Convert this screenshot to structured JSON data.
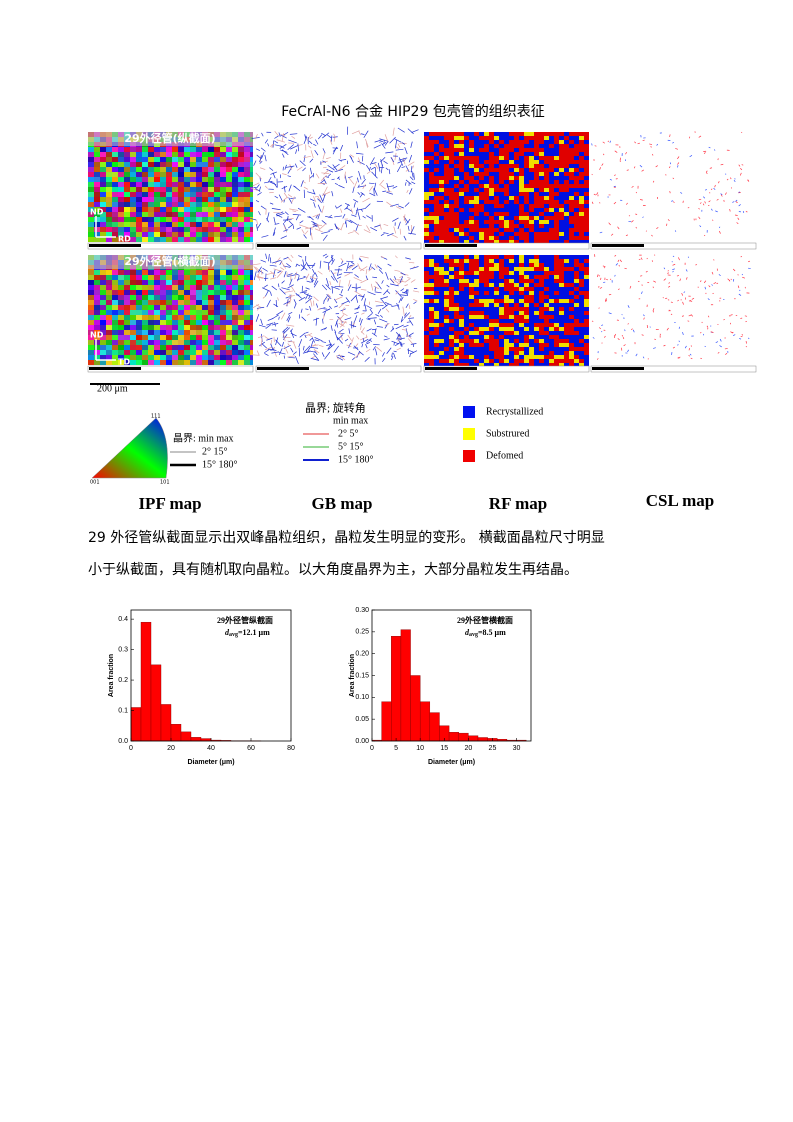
{
  "header": {
    "title": "FeCrAl-N6 合金 HIP29 包壳管的组织表征"
  },
  "figure": {
    "row_labels": [
      "29外径管(纵截面)",
      "29外径管(横截面)"
    ],
    "axis_labels": [
      [
        "ND",
        "RD"
      ],
      [
        "ND",
        "TD"
      ]
    ],
    "scale_bar": "200 μm",
    "ipf_legend": {
      "corners": [
        "001",
        "101",
        "111"
      ],
      "header": "晶界: min   max",
      "rows": [
        "2°    15°",
        "15°   180°"
      ]
    },
    "gb_legend": {
      "header": "晶界; 旋转角",
      "subheader": "min   max",
      "rows": [
        "2°    5°",
        "5°    15°",
        "15°   180°"
      ]
    },
    "rf_legend": [
      "Recrystallized",
      "Substrured",
      "Defomed"
    ],
    "map_names": [
      "IPF map",
      "GB map",
      "RF map",
      "CSL map"
    ]
  },
  "paragraph": [
    "29 外径管纵截面显示出双峰晶粒组织，晶粒发生明显的变形。 横截面晶粒尺寸明显",
    "小于纵截面，具有随机取向晶粒。以大角度晶界为主，大部分晶粒发生再结晶。"
  ],
  "chart_data": [
    {
      "type": "histogram",
      "color": "#ff0000",
      "annotation": {
        "title": "29外径管纵截面",
        "var": "d",
        "sub": "avg",
        "text": "=12.1 μm"
      },
      "xlabel": "Diameter (μm)",
      "ylabel": "Area fraction",
      "bins": [
        0,
        5,
        10,
        15,
        20,
        25,
        30,
        35,
        40,
        45,
        50,
        55,
        60,
        65
      ],
      "values": [
        0.11,
        0.39,
        0.25,
        0.12,
        0.055,
        0.03,
        0.012,
        0.008,
        0.003,
        0.002,
        0.001,
        0.001,
        0.0005
      ],
      "xlim": [
        0,
        80
      ],
      "xticks": [
        0,
        20,
        40,
        60,
        80
      ],
      "ylim": [
        0,
        0.43
      ],
      "yticks": [
        {
          "value": 0,
          "label": "0.0"
        },
        {
          "value": 0.1,
          "label": "0.1"
        },
        {
          "value": 0.2,
          "label": "0.2"
        },
        {
          "value": 0.3,
          "label": "0.3"
        },
        {
          "value": 0.4,
          "label": "0.4"
        }
      ]
    },
    {
      "type": "histogram",
      "color": "#ff0000",
      "annotation": {
        "title": "29外径管横截面",
        "var": "d",
        "sub": "avg",
        "text": "=8.5 μm"
      },
      "xlabel": "Diameter (μm)",
      "ylabel": "Area fraction",
      "bins": [
        0,
        2,
        4,
        6,
        8,
        10,
        12,
        14,
        16,
        18,
        20,
        22,
        24,
        26,
        28,
        30,
        32
      ],
      "values": [
        0.002,
        0.09,
        0.24,
        0.255,
        0.15,
        0.09,
        0.065,
        0.035,
        0.02,
        0.018,
        0.012,
        0.008,
        0.006,
        0.004,
        0.002,
        0.002
      ],
      "xlim": [
        0,
        33
      ],
      "xticks": [
        0,
        5,
        10,
        15,
        20,
        25,
        30
      ],
      "ylim": [
        0,
        0.3
      ],
      "yticks": [
        {
          "value": 0,
          "label": "0.00"
        },
        {
          "value": 0.05,
          "label": "0.05"
        },
        {
          "value": 0.1,
          "label": "0.10"
        },
        {
          "value": 0.15,
          "label": "0.15"
        },
        {
          "value": 0.2,
          "label": "0.20"
        },
        {
          "value": 0.25,
          "label": "0.25"
        },
        {
          "value": 0.3,
          "label": "0.30"
        }
      ]
    }
  ]
}
